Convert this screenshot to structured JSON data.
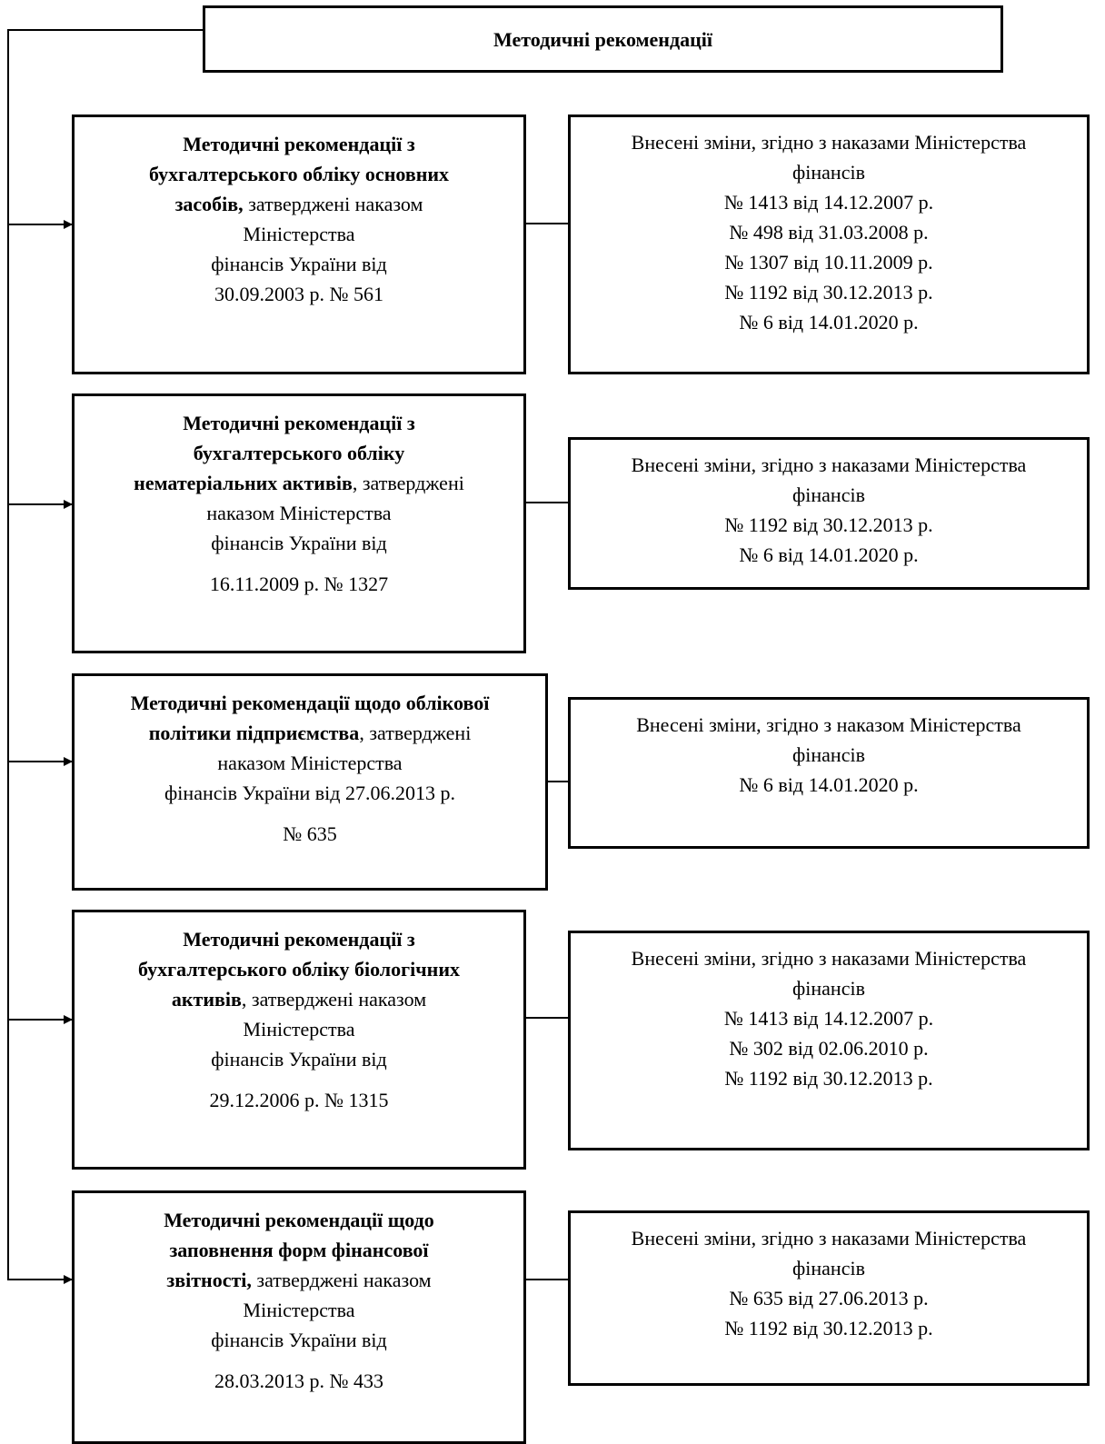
{
  "root": {
    "title": "Методичні рекомендації"
  },
  "rows": [
    {
      "doc": [
        {
          "text": "Методичні рекомендації з",
          "bold": true
        },
        {
          "text": "бухгалтерського обліку основних",
          "bold": true
        },
        {
          "parts": [
            {
              "text": "засобів,",
              "bold": true
            },
            {
              "text": " затверджені наказом",
              "bold": false
            }
          ]
        },
        {
          "text": "Міністерства",
          "bold": false
        },
        {
          "text": "фінансів України від",
          "bold": false
        },
        {
          "text": "30.09.2003 р. № 561",
          "bold": false
        }
      ],
      "changes": [
        "Внесені зміни, згідно з наказами Міністерства",
        "фінансів",
        "№ 1413 від 14.12.2007 р.",
        "№ 498 від 31.03.2008 р.",
        "№ 1307 від 10.11.2009 р.",
        "№ 1192 від 30.12.2013 р.",
        "№ 6 від 14.01.2020 р."
      ]
    },
    {
      "doc": [
        {
          "text": "Методичні рекомендації з",
          "bold": true
        },
        {
          "text": "бухгалтерського обліку",
          "bold": true
        },
        {
          "parts": [
            {
              "text": "нематеріальних активів",
              "bold": true
            },
            {
              "text": ", затверджені",
              "bold": false
            }
          ]
        },
        {
          "text": "наказом Міністерства",
          "bold": false
        },
        {
          "text": "фінансів України від",
          "bold": false
        },
        {
          "gap": true
        },
        {
          "text": "16.11.2009 р. № 1327",
          "bold": false
        }
      ],
      "changes": [
        "Внесені зміни, згідно з наказами Міністерства",
        "фінансів",
        "№ 1192 від 30.12.2013 р.",
        "№ 6 від 14.01.2020 р."
      ]
    },
    {
      "doc": [
        {
          "text": "Методичні рекомендації щодо облікової",
          "bold": true
        },
        {
          "parts": [
            {
              "text": "політики підприємства",
              "bold": true
            },
            {
              "text": ", затверджені",
              "bold": false
            }
          ]
        },
        {
          "text": "наказом Міністерства",
          "bold": false
        },
        {
          "text": "фінансів України від 27.06.2013 р.",
          "bold": false
        },
        {
          "gap": true
        },
        {
          "text": "№ 635",
          "bold": false
        }
      ],
      "changes": [
        "Внесені зміни, згідно з наказом Міністерства",
        "фінансів",
        "№ 6 від 14.01.2020 р."
      ]
    },
    {
      "doc": [
        {
          "text": "Методичні рекомендації з",
          "bold": true
        },
        {
          "text": "бухгалтерського обліку біологічних",
          "bold": true
        },
        {
          "parts": [
            {
              "text": "активів",
              "bold": true
            },
            {
              "text": ", затверджені наказом",
              "bold": false
            }
          ]
        },
        {
          "text": "Міністерства",
          "bold": false
        },
        {
          "text": "фінансів України від",
          "bold": false
        },
        {
          "gap": true
        },
        {
          "text": "29.12.2006 р. № 1315",
          "bold": false
        }
      ],
      "changes": [
        "Внесені зміни, згідно з наказами Міністерства",
        "фінансів",
        "№ 1413 від 14.12.2007 р.",
        "№ 302 від 02.06.2010 р.",
        "№ 1192 від 30.12.2013 р."
      ]
    },
    {
      "doc": [
        {
          "text": "Методичні рекомендації щодо",
          "bold": true
        },
        {
          "text": "заповнення форм фінансової",
          "bold": true
        },
        {
          "parts": [
            {
              "text": "звітності,",
              "bold": true
            },
            {
              "text": " затверджені наказом",
              "bold": false
            }
          ]
        },
        {
          "text": "Міністерства",
          "bold": false
        },
        {
          "text": "фінансів України від",
          "bold": false
        },
        {
          "gap": true
        },
        {
          "text": "28.03.2013 р. № 433",
          "bold": false
        }
      ],
      "changes": [
        "Внесені зміни, згідно з наказами Міністерства",
        "фінансів",
        "№ 635 від 27.06.2013 р.",
        "№ 1192 від 30.12.2013 р."
      ]
    }
  ]
}
